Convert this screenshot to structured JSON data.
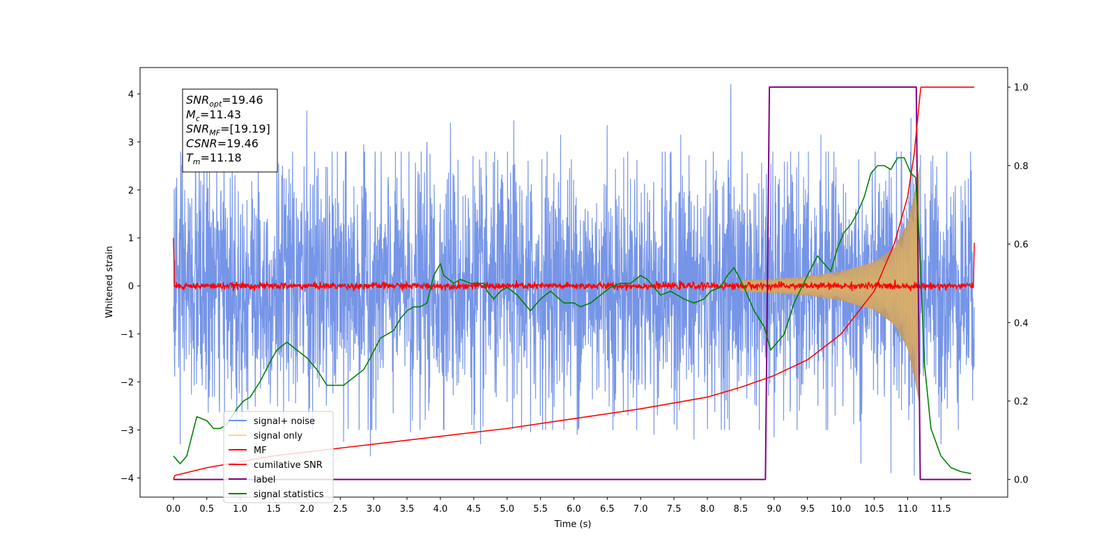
{
  "chart_data": {
    "type": "line",
    "xlabel": "Time (s)",
    "ylabel_left": "Whitened strain",
    "xlim": [
      -0.5,
      12.5
    ],
    "ylim_left": [
      -4.4,
      4.55
    ],
    "ylim_right": [
      -0.045,
      1.05
    ],
    "x_ticks": [
      "0.0",
      "0.5",
      "1.0",
      "1.5",
      "2.0",
      "2.5",
      "3.0",
      "3.5",
      "4.0",
      "4.5",
      "5.0",
      "5.5",
      "6.0",
      "6.5",
      "7.0",
      "7.5",
      "8.0",
      "8.5",
      "9.0",
      "9.5",
      "10.0",
      "10.5",
      "11.0",
      "11.5"
    ],
    "y_ticks_left": [
      "4",
      "3",
      "2",
      "1",
      "0",
      "−1",
      "−2",
      "−3",
      "−4"
    ],
    "y_ticks_right": [
      "1.0",
      "0.8",
      "0.6",
      "0.4",
      "0.2",
      "0.0"
    ],
    "annotation": {
      "lines": [
        {
          "sym": "SNR",
          "sub": "opt",
          "value": "=19.46"
        },
        {
          "sym": "M",
          "sub": "c",
          "value": "=11.43"
        },
        {
          "sym": "SNR",
          "sub": "MF",
          "value": "=[19.19]"
        },
        {
          "sym": "CSNR",
          "sub": "",
          "value": "=19.46"
        },
        {
          "sym": "T",
          "sub": "m",
          "value": "=11.18"
        }
      ]
    },
    "legend": {
      "placement": "lower-left",
      "entries": [
        {
          "label": "signal+ noise",
          "color": "#6f8fe6"
        },
        {
          "label": "signal only",
          "color": "#f5c56a"
        },
        {
          "label": "MF",
          "color": "#ff0000"
        },
        {
          "label": "cumilative SNR",
          "color": "#ff0000"
        },
        {
          "label": "label",
          "color": "#800080"
        },
        {
          "label": "signal statistics",
          "color": "#008000"
        }
      ]
    },
    "series": [
      {
        "name": "signal+ noise",
        "axis": "left",
        "style": "noise-band",
        "color": "#6f8fe6",
        "x_range": [
          0.0,
          12.0
        ],
        "typical_amplitude": 1.6,
        "max_peaks": [
          [
            0.05,
            2.25
          ],
          [
            0.95,
            2.6
          ],
          [
            1.55,
            2.9
          ],
          [
            2.0,
            3.65
          ],
          [
            2.85,
            2.95
          ],
          [
            3.8,
            3.0
          ],
          [
            4.15,
            3.4
          ],
          [
            5.1,
            3.45
          ],
          [
            5.8,
            3.15
          ],
          [
            6.5,
            3.35
          ],
          [
            7.6,
            3.15
          ],
          [
            8.35,
            4.2
          ],
          [
            9.7,
            3.15
          ],
          [
            11.05,
            3.5
          ],
          [
            11.35,
            2.6
          ]
        ],
        "min_peaks": [
          [
            0.1,
            -3.3
          ],
          [
            0.95,
            -3.0
          ],
          [
            1.65,
            -3.0
          ],
          [
            2.55,
            -3.25
          ],
          [
            2.95,
            -3.55
          ],
          [
            3.55,
            -3.05
          ],
          [
            4.6,
            -3.3
          ],
          [
            5.35,
            -3.05
          ],
          [
            6.05,
            -3.1
          ],
          [
            7.2,
            -3.1
          ],
          [
            7.8,
            -3.2
          ],
          [
            9.0,
            -3.15
          ],
          [
            10.3,
            -3.7
          ],
          [
            10.75,
            -3.9
          ],
          [
            11.1,
            -3.95
          ],
          [
            11.5,
            -3.3
          ]
        ]
      },
      {
        "name": "signal only",
        "axis": "left",
        "style": "chirp-envelope",
        "color": "#f5c56a",
        "x": [
          8.5,
          9.0,
          9.5,
          10.0,
          10.5,
          10.8,
          11.0,
          11.1,
          11.18
        ],
        "envelope": [
          0.12,
          0.15,
          0.2,
          0.3,
          0.5,
          0.8,
          1.3,
          1.9,
          2.5
        ]
      },
      {
        "name": "MF",
        "axis": "left",
        "style": "noisy-baseline",
        "color": "#ff0000",
        "x_range": [
          0.0,
          12.0
        ],
        "baseline": 0.0,
        "noise_amplitude": 0.1,
        "edge_spikes": [
          [
            0.0,
            1.0
          ],
          [
            12.0,
            0.9
          ]
        ]
      },
      {
        "name": "cumilative SNR",
        "axis": "right",
        "color": "#ff0000",
        "x": [
          0.0,
          0.02,
          0.5,
          1.0,
          1.5,
          2.0,
          3.0,
          4.0,
          5.0,
          6.0,
          7.0,
          8.0,
          8.5,
          9.0,
          9.5,
          10.0,
          10.5,
          10.8,
          11.0,
          11.1,
          11.18,
          11.2,
          12.0
        ],
        "y": [
          0.0,
          0.01,
          0.03,
          0.045,
          0.06,
          0.07,
          0.09,
          0.11,
          0.13,
          0.155,
          0.18,
          0.21,
          0.235,
          0.265,
          0.305,
          0.37,
          0.48,
          0.6,
          0.72,
          0.83,
          0.97,
          1.0,
          1.0
        ]
      },
      {
        "name": "label",
        "axis": "right",
        "color": "#800080",
        "x": [
          0.0,
          8.87,
          8.93,
          11.13,
          11.19,
          11.95
        ],
        "y": [
          0.0,
          0.0,
          1.0,
          1.0,
          0.0,
          0.0
        ]
      },
      {
        "name": "signal statistics",
        "axis": "right",
        "color": "#008000",
        "x": [
          0.0,
          0.1,
          0.2,
          0.35,
          0.5,
          0.6,
          0.7,
          0.8,
          0.95,
          1.05,
          1.15,
          1.3,
          1.45,
          1.55,
          1.7,
          1.85,
          2.0,
          2.15,
          2.3,
          2.45,
          2.55,
          2.7,
          2.85,
          2.95,
          3.1,
          3.2,
          3.3,
          3.4,
          3.5,
          3.6,
          3.7,
          3.8,
          3.9,
          4.0,
          4.05,
          4.2,
          4.3,
          4.45,
          4.55,
          4.65,
          4.7,
          4.8,
          4.9,
          5.0,
          5.15,
          5.25,
          5.35,
          5.5,
          5.65,
          5.85,
          6.0,
          6.1,
          6.25,
          6.4,
          6.55,
          6.7,
          6.85,
          7.0,
          7.1,
          7.2,
          7.3,
          7.45,
          7.55,
          7.65,
          7.8,
          7.95,
          8.05,
          8.2,
          8.3,
          8.4,
          8.55,
          8.7,
          8.85,
          8.95,
          9.05,
          9.15,
          9.3,
          9.5,
          9.65,
          9.75,
          9.85,
          9.95,
          10.05,
          10.15,
          10.25,
          10.35,
          10.45,
          10.55,
          10.65,
          10.75,
          10.85,
          10.95,
          11.05,
          11.12,
          11.18,
          11.25,
          11.35,
          11.5,
          11.65,
          11.8,
          11.95
        ],
        "y": [
          0.06,
          0.04,
          0.06,
          0.16,
          0.15,
          0.13,
          0.13,
          0.14,
          0.18,
          0.2,
          0.21,
          0.25,
          0.3,
          0.33,
          0.35,
          0.33,
          0.31,
          0.28,
          0.24,
          0.24,
          0.24,
          0.26,
          0.28,
          0.31,
          0.36,
          0.37,
          0.38,
          0.41,
          0.43,
          0.44,
          0.44,
          0.45,
          0.52,
          0.55,
          0.52,
          0.5,
          0.51,
          0.5,
          0.5,
          0.5,
          0.48,
          0.46,
          0.48,
          0.49,
          0.47,
          0.45,
          0.43,
          0.46,
          0.48,
          0.45,
          0.45,
          0.44,
          0.45,
          0.47,
          0.49,
          0.5,
          0.5,
          0.52,
          0.51,
          0.49,
          0.47,
          0.48,
          0.47,
          0.46,
          0.45,
          0.46,
          0.48,
          0.49,
          0.52,
          0.54,
          0.49,
          0.43,
          0.39,
          0.33,
          0.35,
          0.37,
          0.45,
          0.52,
          0.57,
          0.55,
          0.53,
          0.59,
          0.63,
          0.65,
          0.68,
          0.72,
          0.78,
          0.8,
          0.8,
          0.79,
          0.82,
          0.82,
          0.78,
          0.77,
          0.6,
          0.3,
          0.13,
          0.06,
          0.03,
          0.02,
          0.015
        ]
      }
    ]
  }
}
